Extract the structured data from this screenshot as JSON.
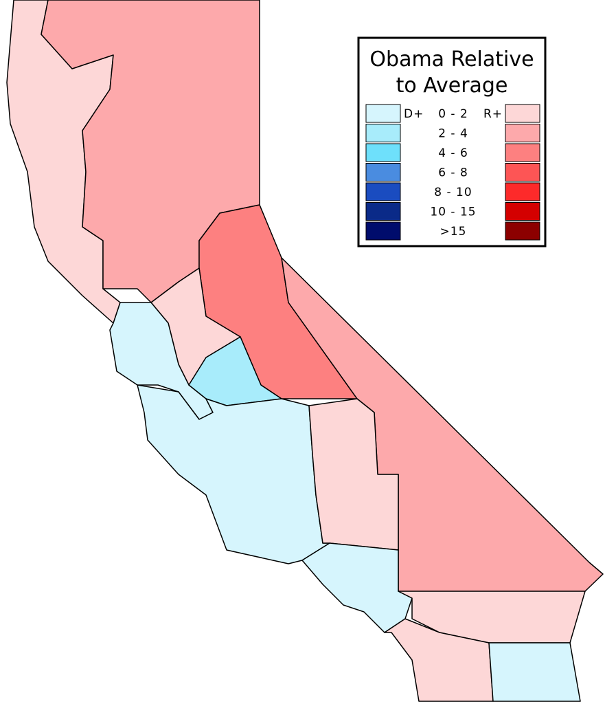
{
  "legend": {
    "title_lines": [
      "Obama Relative",
      "to Average"
    ],
    "dem_label": "D+",
    "rep_label": "R+",
    "rows": [
      {
        "label": "0 - 2",
        "dem_color": "#d6f5fd",
        "rep_color": "#fdd7d7"
      },
      {
        "label": "2 - 4",
        "dem_color": "#a8ecfb",
        "rep_color": "#fda9ab"
      },
      {
        "label": "4 - 6",
        "dem_color": "#6ee0fb",
        "rep_color": "#fd8080"
      },
      {
        "label": "6 - 8",
        "dem_color": "#4a8ce0",
        "rep_color": "#fd5555"
      },
      {
        "label": "8 - 10",
        "dem_color": "#1a4cc0",
        "rep_color": "#fd2a2a"
      },
      {
        "label": "10 - 15",
        "dem_color": "#0a2a88",
        "rep_color": "#d40000"
      },
      {
        "label": ">15",
        "dem_color": "#000c6c",
        "rep_color": "#8c0000"
      }
    ]
  }
}
